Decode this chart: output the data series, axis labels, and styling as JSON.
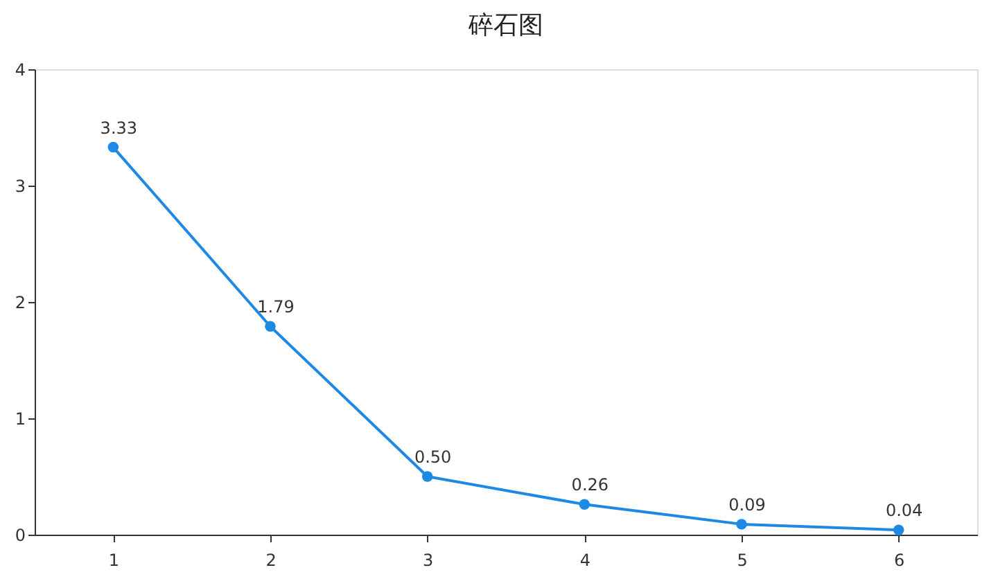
{
  "chart_data": {
    "type": "line",
    "title": "碎石图",
    "categories": [
      "1",
      "2",
      "3",
      "4",
      "5",
      "6"
    ],
    "values": [
      3.33,
      1.79,
      0.5,
      0.26,
      0.09,
      0.04
    ],
    "value_labels": [
      "3.33",
      "1.79",
      "0.50",
      "0.26",
      "0.09",
      "0.04"
    ],
    "color": "#1e88e5",
    "marker": "circle",
    "line_style": "solid",
    "ylim": [
      0,
      4
    ],
    "yticks": [
      0,
      1,
      2,
      3,
      4
    ],
    "grid": false
  }
}
